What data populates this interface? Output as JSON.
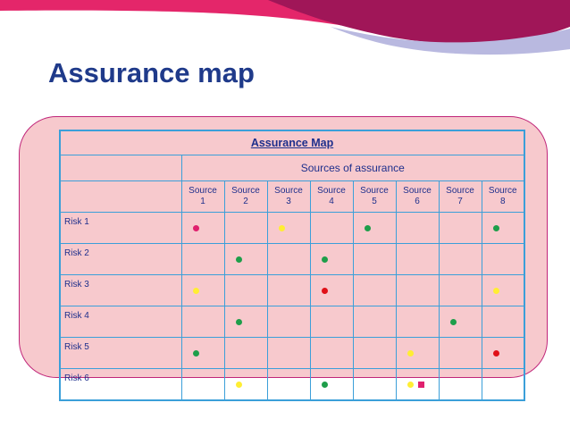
{
  "slide_title": "Assurance map",
  "table": {
    "title": "Assurance Map",
    "group_header": "Sources of assurance",
    "sources": [
      {
        "line1": "Source",
        "line2": "1"
      },
      {
        "line1": "Source",
        "line2": "2"
      },
      {
        "line1": "Source",
        "line2": "3"
      },
      {
        "line1": "Source",
        "line2": "4"
      },
      {
        "line1": "Source",
        "line2": "5"
      },
      {
        "line1": "Source",
        "line2": "6"
      },
      {
        "line1": "Source",
        "line2": "7"
      },
      {
        "line1": "Source",
        "line2": "8"
      }
    ],
    "risks": [
      {
        "label": "Risk 1",
        "cells": [
          [
            "dot-magenta"
          ],
          [],
          [
            "dot-yellow"
          ],
          [],
          [
            "dot-green"
          ],
          [],
          [],
          [
            "dot-green"
          ]
        ]
      },
      {
        "label": "Risk 2",
        "cells": [
          [],
          [
            "dot-green"
          ],
          [],
          [
            "dot-green"
          ],
          [],
          [],
          [],
          []
        ]
      },
      {
        "label": "Risk 3",
        "cells": [
          [
            "dot-yellow"
          ],
          [],
          [],
          [
            "dot-red"
          ],
          [],
          [],
          [],
          [
            "dot-yellow"
          ]
        ]
      },
      {
        "label": "Risk 4",
        "cells": [
          [],
          [
            "dot-green"
          ],
          [],
          [],
          [],
          [],
          [
            "dot-green"
          ],
          []
        ]
      },
      {
        "label": "Risk 5",
        "cells": [
          [
            "dot-green"
          ],
          [],
          [],
          [],
          [],
          [
            "dot-yellow"
          ],
          [],
          [
            "dot-red"
          ]
        ]
      },
      {
        "label": "Risk 6",
        "cells": [
          [],
          [
            "dot-yellow"
          ],
          [],
          [
            "dot-green"
          ],
          [],
          [
            "dot-yellow",
            "square-magenta"
          ],
          [],
          []
        ]
      }
    ]
  },
  "colors": {
    "title_blue": "#1f3a8a",
    "panel_pink": "#f7c9cd",
    "panel_border": "#c0267a",
    "grid_blue": "#3b9fd9",
    "banner_pink": "#e4266a",
    "banner_purple": "#a01658",
    "banner_lavender": "#b9b9e0",
    "green": "#1e9e4a",
    "yellow": "#ffee33",
    "red": "#e01018",
    "magenta": "#e0206e"
  }
}
